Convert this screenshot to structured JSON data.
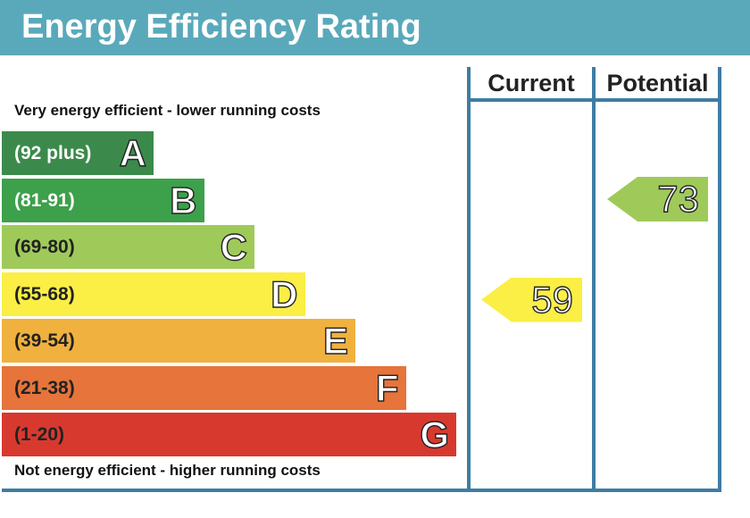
{
  "title": "Energy Efficiency Rating",
  "columns": {
    "current": "Current",
    "potential": "Potential"
  },
  "captions": {
    "top": "Very energy efficient - lower running costs",
    "bottom": "Not energy efficient - higher running costs"
  },
  "chart_data": {
    "type": "bar",
    "title": "Energy Efficiency Rating",
    "bands": [
      {
        "letter": "A",
        "range": "(92 plus)",
        "color": "#3b8a4c"
      },
      {
        "letter": "B",
        "range": "(81-91)",
        "color": "#3da04a"
      },
      {
        "letter": "C",
        "range": "(69-80)",
        "color": "#9fca5a"
      },
      {
        "letter": "D",
        "range": "(55-68)",
        "color": "#fbee45"
      },
      {
        "letter": "E",
        "range": "(39-54)",
        "color": "#f0b13f"
      },
      {
        "letter": "F",
        "range": "(21-38)",
        "color": "#e6743b"
      },
      {
        "letter": "G",
        "range": "(1-20)",
        "color": "#d8392f"
      }
    ],
    "ratings": {
      "current": {
        "value": "59",
        "band": "D",
        "color": "#fbee45"
      },
      "potential": {
        "value": "73",
        "band": "C",
        "color": "#9fca5a"
      }
    }
  }
}
